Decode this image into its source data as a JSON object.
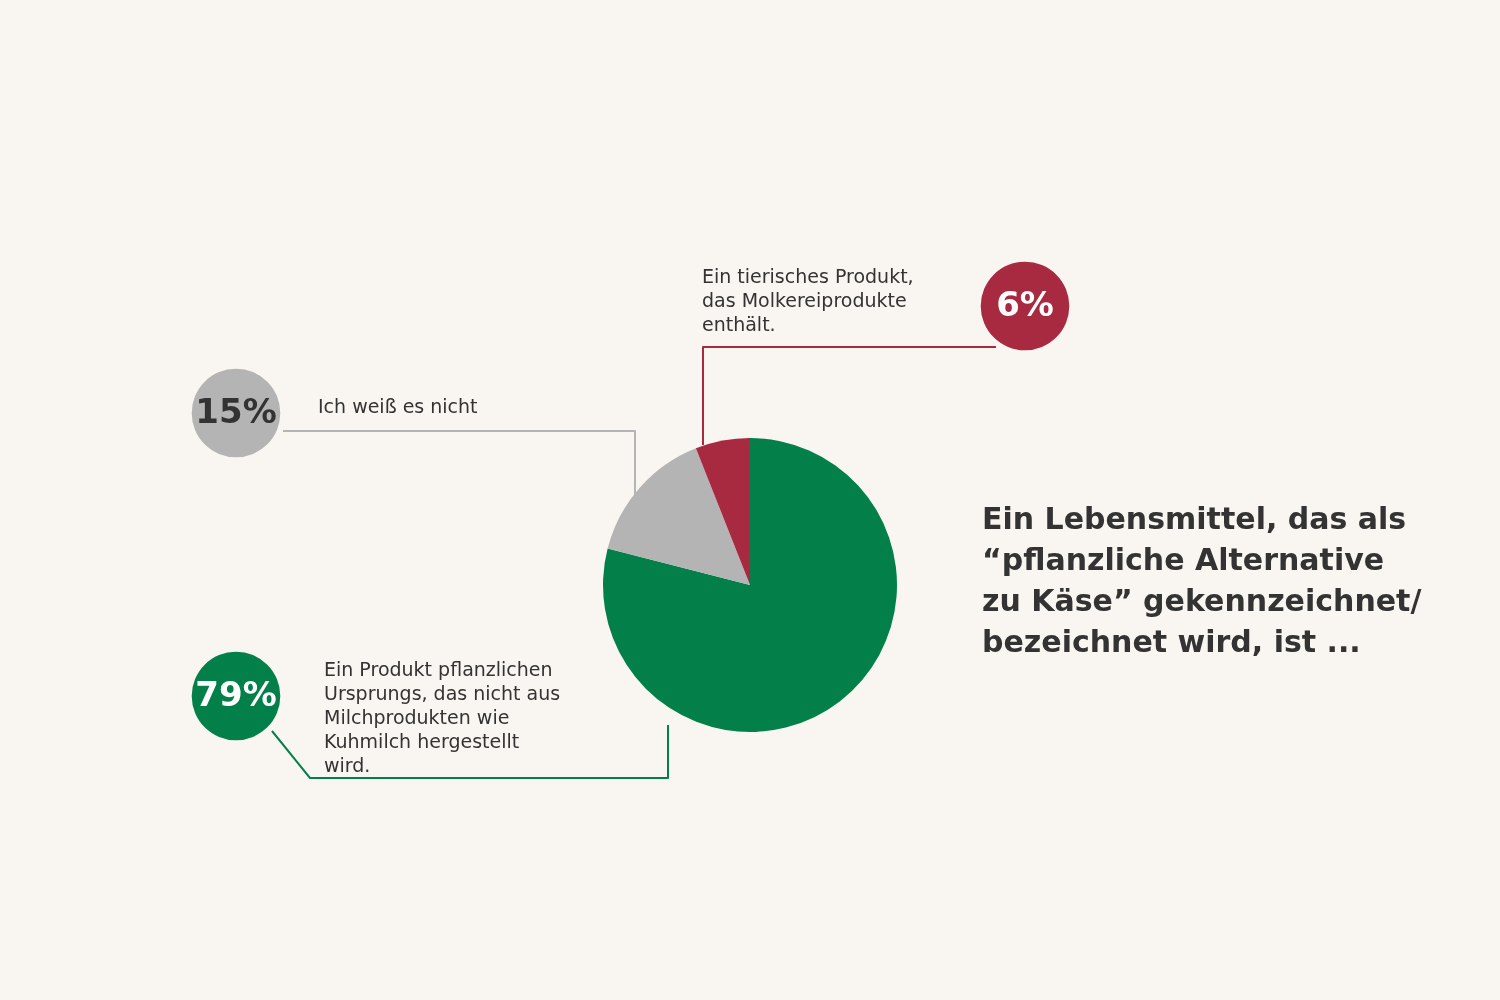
{
  "chart_data": {
    "type": "pie",
    "title": "Ein Lebensmittel, das als “pflanzliche Alternative zu Käse” gekennzeichnet/ bezeichnet wird, ist ...",
    "categories": [
      "Ein Produkt pflanzlichen Ursprungs, das nicht aus Milchprodukten wie Kuhmilch hergestellt wird.",
      "Ich weiß es nicht",
      "Ein tierisches Produkt, das Molkereiprodukte enthält."
    ],
    "values": [
      79,
      15,
      6
    ],
    "colors": [
      "#03804a",
      "#b4b4b4",
      "#a82a40"
    ],
    "value_labels": [
      "79%",
      "15%",
      "6%"
    ]
  }
}
